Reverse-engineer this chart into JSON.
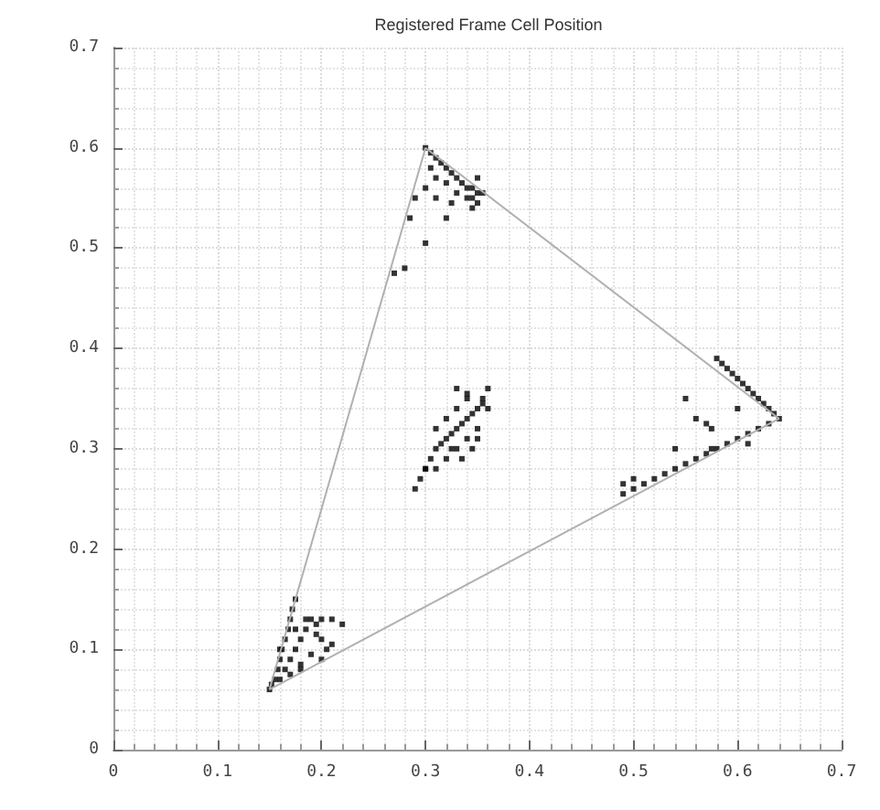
{
  "chart_data": {
    "type": "scatter",
    "title": "Registered Frame Cell Position",
    "xlim": [
      0,
      0.7
    ],
    "ylim": [
      0,
      0.7
    ],
    "xticks": [
      0,
      0.1,
      0.2,
      0.3,
      0.4,
      0.5,
      0.6,
      0.7
    ],
    "yticks": [
      0,
      0.1,
      0.2,
      0.3,
      0.4,
      0.5,
      0.6,
      0.7
    ],
    "grid": true,
    "marker": "square",
    "series": [
      {
        "type": "line",
        "color": "#b0b0b0",
        "marker": "none",
        "x": [
          0.15,
          0.3
        ],
        "values": [
          0.06,
          0.6
        ]
      },
      {
        "type": "line",
        "color": "#b0b0b0",
        "marker": "none",
        "x": [
          0.3,
          0.64
        ],
        "values": [
          0.6,
          0.33
        ]
      },
      {
        "type": "line",
        "color": "#b0b0b0",
        "marker": "none",
        "x": [
          0.15,
          0.64
        ],
        "values": [
          0.06,
          0.33
        ]
      },
      {
        "color": "#000000",
        "x": [
          0.3,
          0.305,
          0.31,
          0.315,
          0.32,
          0.325,
          0.33,
          0.335,
          0.34,
          0.345,
          0.35,
          0.305,
          0.31,
          0.32,
          0.33,
          0.34,
          0.35,
          0.355,
          0.3,
          0.31,
          0.325,
          0.345,
          0.35,
          0.29,
          0.285,
          0.3,
          0.32,
          0.345,
          0.28,
          0.27,
          0.64,
          0.635,
          0.63,
          0.625,
          0.62,
          0.615,
          0.61,
          0.605,
          0.6,
          0.595,
          0.59,
          0.585,
          0.58,
          0.575,
          0.57,
          0.56,
          0.63,
          0.62,
          0.61,
          0.6,
          0.59,
          0.58,
          0.57,
          0.56,
          0.55,
          0.54,
          0.53,
          0.52,
          0.51,
          0.5,
          0.49,
          0.49,
          0.5,
          0.6,
          0.55,
          0.575,
          0.61,
          0.54,
          0.29,
          0.295,
          0.3,
          0.305,
          0.31,
          0.315,
          0.32,
          0.325,
          0.33,
          0.335,
          0.34,
          0.345,
          0.35,
          0.355,
          0.36,
          0.31,
          0.32,
          0.33,
          0.34,
          0.35,
          0.32,
          0.33,
          0.34,
          0.345,
          0.36,
          0.31,
          0.325,
          0.335,
          0.35,
          0.3,
          0.33,
          0.34,
          0.355,
          0.15,
          0.152,
          0.155,
          0.158,
          0.16,
          0.162,
          0.165,
          0.168,
          0.17,
          0.172,
          0.175,
          0.16,
          0.165,
          0.17,
          0.175,
          0.18,
          0.185,
          0.19,
          0.195,
          0.2,
          0.205,
          0.21,
          0.22,
          0.18,
          0.19,
          0.2,
          0.21,
          0.185,
          0.195,
          0.17,
          0.16,
          0.175,
          0.2,
          0.18
        ],
        "values": [
          0.6,
          0.595,
          0.59,
          0.585,
          0.58,
          0.575,
          0.57,
          0.565,
          0.56,
          0.56,
          0.555,
          0.58,
          0.57,
          0.565,
          0.555,
          0.55,
          0.545,
          0.555,
          0.56,
          0.55,
          0.545,
          0.54,
          0.57,
          0.55,
          0.53,
          0.505,
          0.53,
          0.55,
          0.48,
          0.475,
          0.33,
          0.335,
          0.34,
          0.345,
          0.35,
          0.355,
          0.36,
          0.365,
          0.37,
          0.375,
          0.38,
          0.385,
          0.39,
          0.32,
          0.325,
          0.33,
          0.325,
          0.32,
          0.315,
          0.31,
          0.305,
          0.3,
          0.295,
          0.29,
          0.285,
          0.28,
          0.275,
          0.27,
          0.265,
          0.26,
          0.255,
          0.265,
          0.27,
          0.34,
          0.35,
          0.3,
          0.305,
          0.3,
          0.26,
          0.27,
          0.28,
          0.29,
          0.3,
          0.305,
          0.31,
          0.315,
          0.32,
          0.325,
          0.33,
          0.335,
          0.34,
          0.35,
          0.36,
          0.28,
          0.29,
          0.3,
          0.31,
          0.32,
          0.33,
          0.34,
          0.35,
          0.3,
          0.34,
          0.32,
          0.3,
          0.29,
          0.31,
          0.28,
          0.36,
          0.355,
          0.345,
          0.06,
          0.065,
          0.07,
          0.08,
          0.09,
          0.1,
          0.11,
          0.12,
          0.13,
          0.14,
          0.15,
          0.07,
          0.08,
          0.09,
          0.1,
          0.11,
          0.12,
          0.13,
          0.125,
          0.11,
          0.1,
          0.13,
          0.125,
          0.085,
          0.095,
          0.09,
          0.105,
          0.13,
          0.115,
          0.075,
          0.1,
          0.12,
          0.13,
          0.08
        ]
      }
    ]
  }
}
